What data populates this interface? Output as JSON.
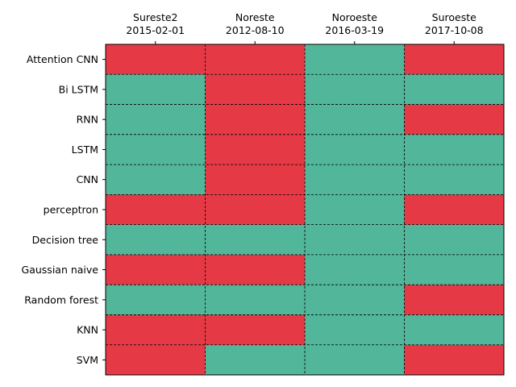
{
  "chart_data": {
    "type": "heatmap",
    "title": "",
    "xlabel": "",
    "ylabel": "",
    "columns": [
      {
        "name": "Sureste2",
        "date": "2015-02-01"
      },
      {
        "name": "Noreste",
        "date": "2012-08-10"
      },
      {
        "name": "Noroeste",
        "date": "2016-03-19"
      },
      {
        "name": "Suroeste",
        "date": "2017-10-08"
      }
    ],
    "rows": [
      "Attention CNN",
      "Bi LSTM",
      "RNN",
      "LSTM",
      "CNN",
      "perceptron",
      "Decision tree",
      "Gaussian naive",
      "Random forest",
      "KNN",
      "SVM"
    ],
    "values": [
      [
        0,
        0,
        1,
        0
      ],
      [
        1,
        0,
        1,
        1
      ],
      [
        1,
        0,
        1,
        0
      ],
      [
        1,
        0,
        1,
        1
      ],
      [
        1,
        0,
        1,
        1
      ],
      [
        0,
        0,
        1,
        0
      ],
      [
        1,
        1,
        1,
        1
      ],
      [
        0,
        0,
        1,
        1
      ],
      [
        1,
        1,
        1,
        0
      ],
      [
        0,
        0,
        1,
        1
      ],
      [
        0,
        1,
        1,
        0
      ]
    ],
    "colors": {
      "0": "#e63946",
      "1": "#52b69a"
    },
    "grid": true,
    "grid_style": "dashed",
    "x_axis_position": "top"
  }
}
